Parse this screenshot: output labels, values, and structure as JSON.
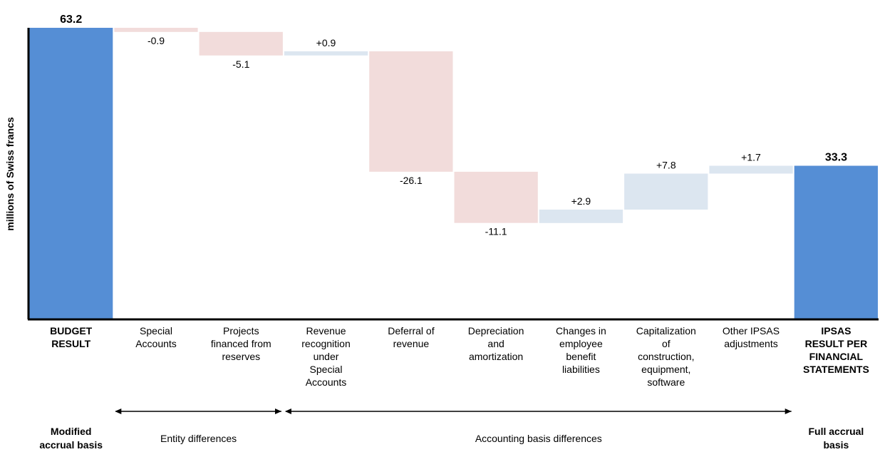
{
  "chart_data": {
    "type": "waterfall",
    "ylabel": "millions of Swiss francs",
    "ylim": [
      0,
      63.2
    ],
    "categories": [
      {
        "label": [
          "BUDGET",
          "RESULT"
        ],
        "bold": true
      },
      {
        "label": [
          "Special",
          "Accounts"
        ]
      },
      {
        "label": [
          "Projects",
          "financed from",
          "reserves"
        ]
      },
      {
        "label": [
          "Revenue",
          "recognition",
          "under",
          "Special",
          "Accounts"
        ]
      },
      {
        "label": [
          "Deferral of",
          "revenue"
        ]
      },
      {
        "label": [
          "Depreciation",
          "and",
          "amortization"
        ]
      },
      {
        "label": [
          "Changes in",
          "employee",
          "benefit",
          "liabilities"
        ]
      },
      {
        "label": [
          "Capitalization",
          "of",
          "construction,",
          "equipment,",
          "software"
        ]
      },
      {
        "label": [
          "Other IPSAS",
          "adjustments"
        ]
      },
      {
        "label": [
          "IPSAS",
          "RESULT PER",
          "FINANCIAL",
          "STATEMENTS"
        ],
        "bold": true
      }
    ],
    "steps": [
      {
        "kind": "total",
        "value": 63.2,
        "label": "63.2"
      },
      {
        "kind": "delta",
        "value": -0.9,
        "label": "-0.9"
      },
      {
        "kind": "delta",
        "value": -5.1,
        "label": "-5.1"
      },
      {
        "kind": "delta",
        "value": 0.9,
        "label": "+0.9"
      },
      {
        "kind": "delta",
        "value": -26.1,
        "label": "-26.1"
      },
      {
        "kind": "delta",
        "value": -11.1,
        "label": "-11.1"
      },
      {
        "kind": "delta",
        "value": 2.9,
        "label": "+2.9"
      },
      {
        "kind": "delta",
        "value": 7.8,
        "label": "+7.8"
      },
      {
        "kind": "delta",
        "value": 1.7,
        "label": "+1.7"
      },
      {
        "kind": "total",
        "value": 33.3,
        "label": "33.3"
      }
    ],
    "groups": [
      {
        "label": "Entity differences",
        "from": 1,
        "to": 2
      },
      {
        "label": "Accounting basis differences",
        "from": 3,
        "to": 8
      }
    ],
    "basis_labels": {
      "left": [
        "Modified",
        "accrual basis"
      ],
      "right": [
        "Full accrual",
        "basis"
      ]
    },
    "colors": {
      "total": "#558ed5",
      "increase": "#dce6f0",
      "decrease": "#f2dcdb",
      "axis": "#000000"
    }
  }
}
